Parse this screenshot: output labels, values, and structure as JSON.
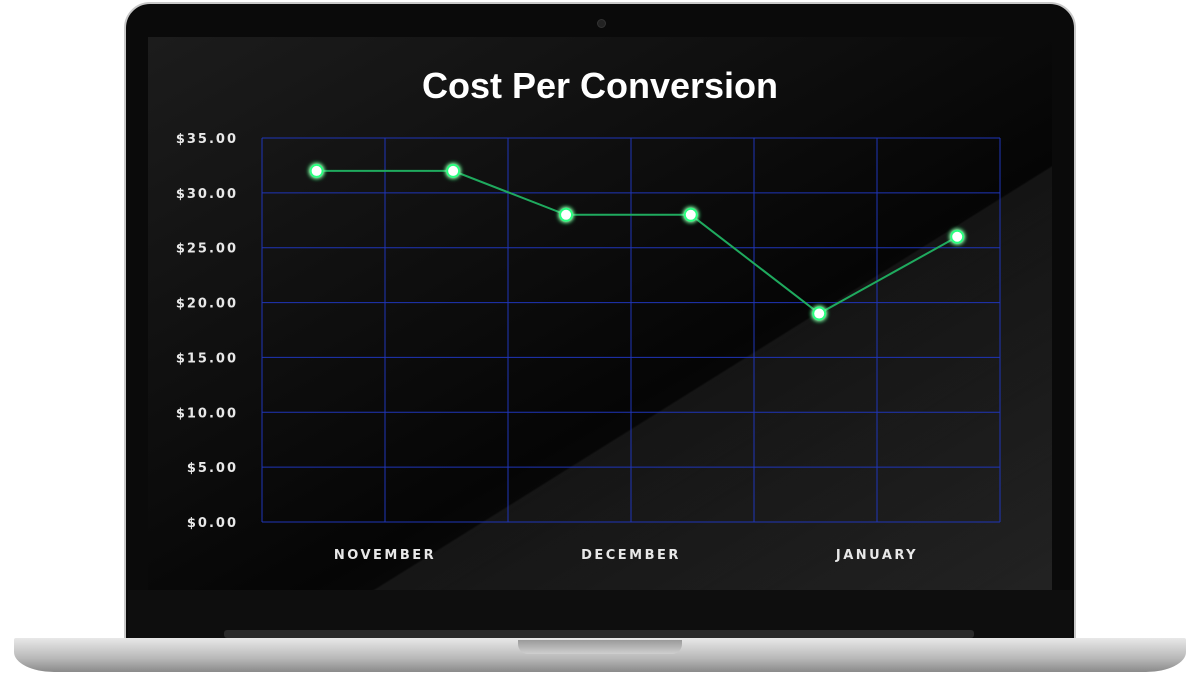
{
  "chart_data": {
    "type": "line",
    "title": "Cost Per Conversion",
    "xlabel": "",
    "ylabel": "",
    "x_tick_labels": [
      "NOVEMBER",
      "DECEMBER",
      "JANUARY"
    ],
    "y_tick_labels": [
      "$0.00",
      "$5.00",
      "$10.00",
      "$15.00",
      "$20.00",
      "$25.00",
      "$30.00",
      "$35.00"
    ],
    "ylim": [
      0,
      35
    ],
    "grid": true,
    "series": [
      {
        "values": [
          32,
          32,
          28,
          28,
          19,
          26
        ]
      }
    ],
    "colors": {
      "line": "#1faa5e",
      "point": "#ffffff",
      "point_glow": "#2cff80",
      "grid": "#1f35b8",
      "text": "#e8e8e8"
    }
  }
}
